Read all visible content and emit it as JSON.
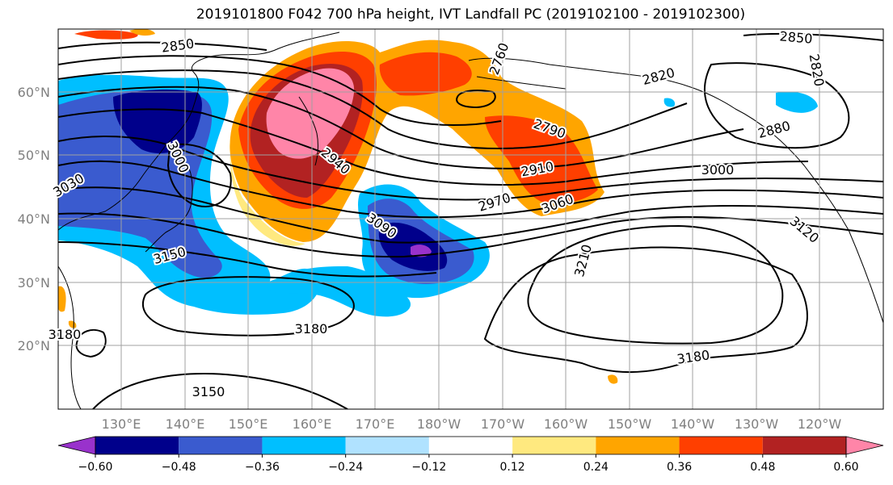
{
  "title": "2019101800 F042 700 hPa height, IVT Landfall PC (2019102100 - 2019102300)",
  "lat_ticks": [
    "60°N",
    "50°N",
    "40°N",
    "30°N",
    "20°N"
  ],
  "lon_ticks": [
    "130°E",
    "140°E",
    "150°E",
    "160°E",
    "170°E",
    "180°W",
    "170°W",
    "160°W",
    "150°W",
    "140°W",
    "130°W",
    "120°W"
  ],
  "colorbar": {
    "ticks": [
      "−0.60",
      "−0.48",
      "−0.36",
      "−0.24",
      "−0.12",
      "0.12",
      "0.24",
      "0.36",
      "0.48",
      "0.60"
    ],
    "colors": [
      "#9932cc",
      "#00008b",
      "#3a5bcf",
      "#00bfff",
      "#b0e2ff",
      "#ffffff",
      "#ffe97f",
      "#ffa500",
      "#ff3f00",
      "#b22222",
      "#ff85a8"
    ]
  },
  "contour_labels": [
    "2850",
    "2850",
    "2820",
    "2820",
    "2760",
    "2790",
    "2880",
    "2910",
    "2940",
    "3000",
    "3000",
    "2970",
    "3060",
    "3030",
    "3090",
    "3120",
    "3210",
    "3150",
    "3180",
    "3180",
    "3180",
    "3150"
  ]
}
